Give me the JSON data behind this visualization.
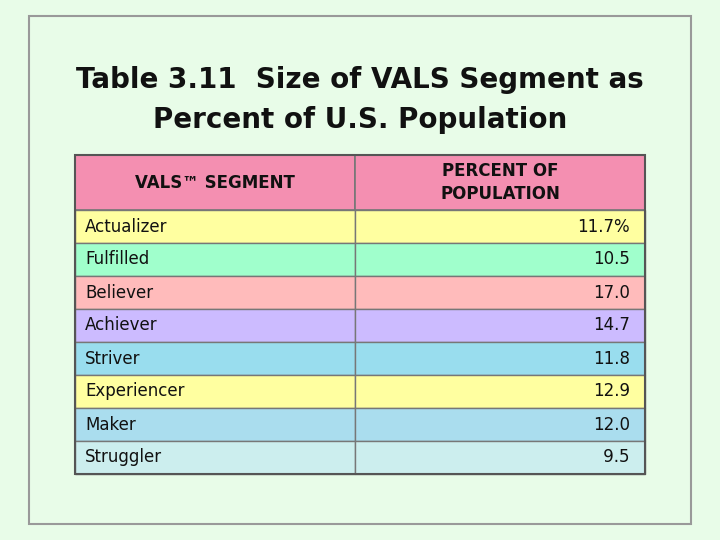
{
  "title_line1": "Table 3.11  Size of VALS Segment as",
  "title_line2": "Percent of U.S. Population",
  "title_fontsize": 20,
  "background_color": "#e8fce8",
  "border_color": "#999999",
  "header_row": [
    "VALS™ SEGMENT",
    "PERCENT OF\nPOPULATION"
  ],
  "header_bg": "#f48fb1",
  "rows": [
    [
      "Actualizer",
      "11.7%"
    ],
    [
      "Fulfilled",
      "10.5"
    ],
    [
      "Believer",
      "17.0"
    ],
    [
      "Achiever",
      "14.7"
    ],
    [
      "Striver",
      "11.8"
    ],
    [
      "Experiencer",
      "12.9"
    ],
    [
      "Maker",
      "12.0"
    ],
    [
      "Struggler",
      " 9.5"
    ]
  ],
  "row_colors": [
    "#ffffa0",
    "#a0ffcc",
    "#ffbbbb",
    "#ccbbff",
    "#99ddee",
    "#ffffa0",
    "#aaddee",
    "#cceeee"
  ],
  "text_color": "#111111",
  "cell_edge_color": "#777777",
  "font_family": "DejaVu Sans",
  "data_fontsize": 12,
  "header_fontsize": 12
}
